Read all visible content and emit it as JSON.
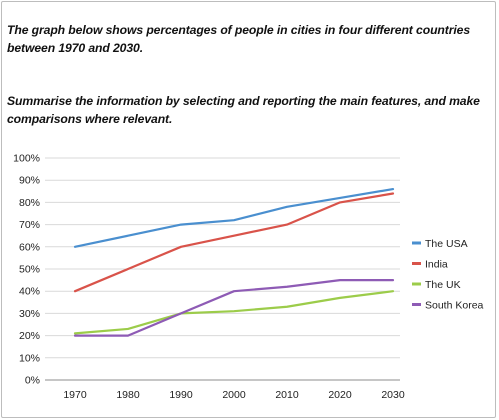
{
  "prompt": {
    "line1": "The graph below shows percentages of people in cities in four different countries between 1970 and 2030.",
    "line2": "Summarise the information by selecting and reporting the main features, and make comparisons where relevant."
  },
  "chart_data": {
    "type": "line",
    "title": "",
    "xlabel": "",
    "ylabel": "",
    "x": [
      "1970",
      "1980",
      "1990",
      "2000",
      "2010",
      "2020",
      "2030"
    ],
    "ylim": [
      0,
      100
    ],
    "yticks": [
      "0%",
      "10%",
      "20%",
      "30%",
      "40%",
      "50%",
      "60%",
      "70%",
      "80%",
      "90%",
      "100%"
    ],
    "grid": "horizontal",
    "legend_position": "right",
    "series": [
      {
        "name": "The USA",
        "color": "#4a8fcf",
        "values": [
          60,
          65,
          70,
          72,
          78,
          82,
          86
        ]
      },
      {
        "name": "India",
        "color": "#d9534a",
        "values": [
          40,
          50,
          60,
          65,
          70,
          80,
          84
        ]
      },
      {
        "name": "The UK",
        "color": "#9ccc4a",
        "values": [
          21,
          23,
          30,
          31,
          33,
          37,
          40
        ]
      },
      {
        "name": "South Korea",
        "color": "#8e5bb5",
        "values": [
          20,
          20,
          30,
          40,
          42,
          45,
          45
        ]
      }
    ]
  }
}
